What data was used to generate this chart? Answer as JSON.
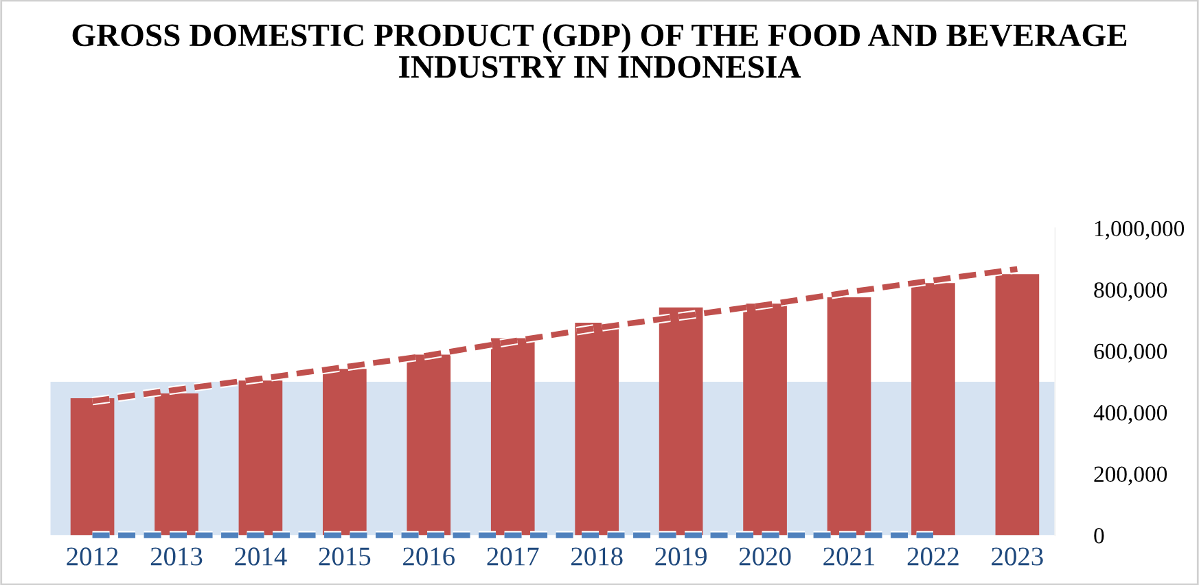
{
  "chart_data": {
    "type": "bar",
    "title": "GROSS DOMESTIC PRODUCT (GDP) OF THE FOOD AND BEVERAGE INDUSTRY IN INDONESIA",
    "categories": [
      "2012",
      "2013",
      "2014",
      "2015",
      "2016",
      "2017",
      "2018",
      "2019",
      "2020",
      "2021",
      "2022",
      "2023"
    ],
    "series": [
      {
        "color": "#c0504d",
        "values": [
          446000,
          462000,
          504000,
          542000,
          588000,
          642000,
          692000,
          742000,
          754000,
          775000,
          821000,
          850000
        ]
      },
      {
        "type": "line",
        "color": "#4f81bd",
        "line_style": "dashed",
        "values": [
          0,
          0,
          0,
          0,
          0,
          0,
          0,
          0,
          0,
          0,
          0,
          null
        ]
      },
      {
        "type": "line",
        "color": "#c0504d",
        "line_style": "dashed",
        "values": [
          437000,
          474000,
          510000,
          548000,
          586000,
          632000,
          675000,
          713000,
          750000,
          792000,
          830000,
          867000
        ]
      }
    ],
    "bands": [
      {
        "axis": "y",
        "from": 0,
        "to": 500000,
        "color": "#d6e3f2"
      }
    ],
    "ylim": [
      0,
      1000000
    ],
    "yticks": [
      {
        "value": 0,
        "label": "0"
      },
      {
        "value": 200000,
        "label": "200,000"
      },
      {
        "value": 400000,
        "label": "400,000"
      },
      {
        "value": 600000,
        "label": "600,000"
      },
      {
        "value": 800000,
        "label": "800,000"
      },
      {
        "value": 1000000,
        "label": "1,000,000"
      }
    ],
    "grid": false,
    "legend": false
  }
}
